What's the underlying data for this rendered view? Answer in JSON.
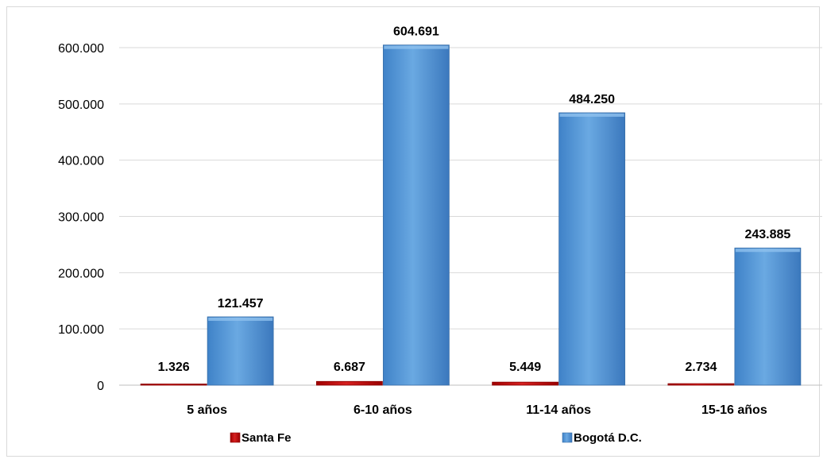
{
  "chart_data": {
    "type": "bar",
    "categories": [
      "5 años",
      "6-10 años",
      "11-14 años",
      "15-16 años"
    ],
    "series": [
      {
        "name": "Santa Fe",
        "values": [
          1326,
          6687,
          5449,
          2734
        ],
        "labels": [
          "1.326",
          "6.687",
          "5.449",
          "2.734"
        ],
        "color": "#c00000"
      },
      {
        "name": "Bogotá D.C.",
        "values": [
          121457,
          604691,
          484250,
          243885
        ],
        "labels": [
          "121.457",
          "604.691",
          "484.250",
          "243.885"
        ],
        "color": "#5b9bd5"
      }
    ],
    "title": "",
    "xlabel": "",
    "ylabel": "",
    "ylim": [
      0,
      600000
    ],
    "yticks": [
      0,
      100000,
      200000,
      300000,
      400000,
      500000,
      600000
    ],
    "ytick_labels": [
      "0",
      "100.000",
      "200.000",
      "300.000",
      "400.000",
      "500.000",
      "600.000"
    ],
    "grid": true,
    "legend_position": "bottom"
  }
}
